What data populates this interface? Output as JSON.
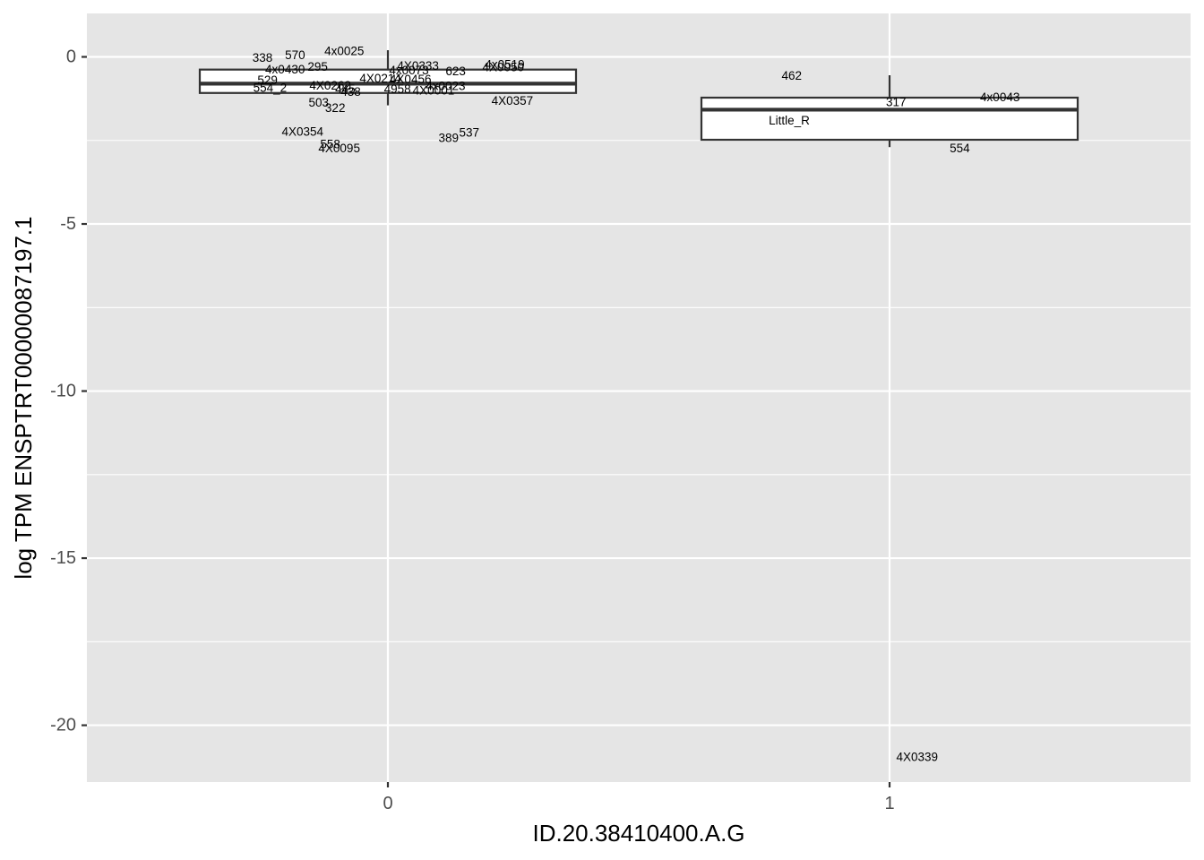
{
  "chart_data": {
    "type": "box",
    "xlabel": "ID.20.38410400.A.G",
    "ylabel": "log TPM ENSPTRT00000087197.1",
    "categories": [
      "0",
      "1"
    ],
    "xlim": [
      -0.6,
      1.6
    ],
    "ylim": [
      -21.7,
      1.3
    ],
    "yticks": [
      0,
      -5,
      -10,
      -15,
      -20
    ],
    "ytick_labels": [
      "0",
      "-5",
      "-10",
      "-15",
      "-20"
    ],
    "grid": true,
    "background": "#e5e5e5",
    "grid_color": "#ffffff",
    "boxes": [
      {
        "category": "0",
        "xpos": 0,
        "whisker_low": -1.45,
        "q1": -1.08,
        "median": -0.8,
        "q3": -0.38,
        "whisker_high": 0.2
      },
      {
        "category": "1",
        "xpos": 1,
        "whisker_low": -2.7,
        "q1": -2.48,
        "median": -1.58,
        "q3": -1.22,
        "whisker_high": -0.55
      }
    ],
    "point_labels": [
      {
        "text": "338",
        "x": -0.25,
        "y": -0.03
      },
      {
        "text": "570",
        "x": -0.185,
        "y": 0.06
      },
      {
        "text": "4x0025",
        "x": -0.087,
        "y": 0.18
      },
      {
        "text": "295",
        "x": -0.14,
        "y": -0.3
      },
      {
        "text": "4x0430",
        "x": -0.205,
        "y": -0.37
      },
      {
        "text": "529",
        "x": -0.24,
        "y": -0.7
      },
      {
        "text": "554_2",
        "x": -0.235,
        "y": -0.92
      },
      {
        "text": "4X0262",
        "x": -0.115,
        "y": -0.86
      },
      {
        "text": "4X0214",
        "x": -0.015,
        "y": -0.65
      },
      {
        "text": "445",
        "x": -0.085,
        "y": -0.96
      },
      {
        "text": "438",
        "x": -0.074,
        "y": -1.05
      },
      {
        "text": "4X0333",
        "x": 0.06,
        "y": -0.27
      },
      {
        "text": "4x0073",
        "x": 0.042,
        "y": -0.4
      },
      {
        "text": "4X0456",
        "x": 0.045,
        "y": -0.67
      },
      {
        "text": "623",
        "x": 0.135,
        "y": -0.43
      },
      {
        "text": "4x0519",
        "x": 0.233,
        "y": -0.23
      },
      {
        "text": "4X0050",
        "x": 0.23,
        "y": -0.31
      },
      {
        "text": "4958",
        "x": 0.019,
        "y": -0.96
      },
      {
        "text": "4X0001",
        "x": 0.091,
        "y": -1.0
      },
      {
        "text": "4x0023",
        "x": 0.115,
        "y": -0.87
      },
      {
        "text": "4X0357",
        "x": 0.248,
        "y": -1.32
      },
      {
        "text": "503",
        "x": -0.138,
        "y": -1.37
      },
      {
        "text": "322",
        "x": -0.105,
        "y": -1.53
      },
      {
        "text": "4X0354",
        "x": -0.17,
        "y": -2.24
      },
      {
        "text": "537",
        "x": 0.162,
        "y": -2.27
      },
      {
        "text": "389",
        "x": 0.121,
        "y": -2.43
      },
      {
        "text": "558",
        "x": -0.115,
        "y": -2.62
      },
      {
        "text": "4X0095",
        "x": -0.097,
        "y": -2.73
      },
      {
        "text": "462",
        "x": 0.805,
        "y": -0.56
      },
      {
        "text": "317",
        "x": 1.013,
        "y": -1.36
      },
      {
        "text": "4x0043",
        "x": 1.22,
        "y": -1.21
      },
      {
        "text": "Little_R",
        "x": 0.8,
        "y": -1.9
      },
      {
        "text": "554",
        "x": 1.14,
        "y": -2.73
      },
      {
        "text": "4X0339",
        "x": 1.055,
        "y": -20.95
      }
    ]
  }
}
